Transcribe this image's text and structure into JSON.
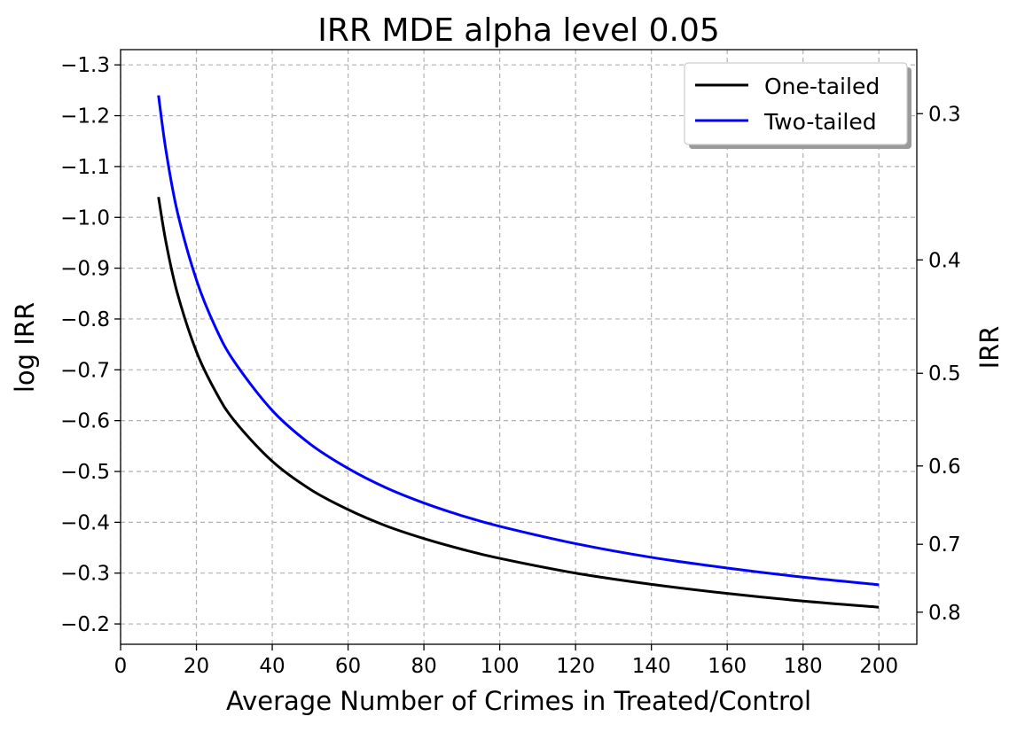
{
  "chart_data": {
    "type": "line",
    "title": "IRR MDE alpha level 0.05",
    "xlabel": "Average Number of Crimes in Treated/Control",
    "ylabel": "log IRR",
    "y2label": "IRR",
    "xlim": [
      0,
      210
    ],
    "ylim": [
      -0.16,
      -1.33
    ],
    "y_inverted": true,
    "x_ticks": [
      0,
      20,
      40,
      60,
      80,
      100,
      120,
      140,
      160,
      180,
      200
    ],
    "y_ticks": [
      -0.2,
      -0.3,
      -0.4,
      -0.5,
      -0.6,
      -0.7,
      -0.8,
      -0.9,
      -1.0,
      -1.1,
      -1.2,
      -1.3
    ],
    "y_tick_labels": [
      "−0.2",
      "−0.3",
      "−0.4",
      "−0.5",
      "−0.6",
      "−0.7",
      "−0.8",
      "−0.9",
      "−1.0",
      "−1.1",
      "−1.2",
      "−1.3"
    ],
    "y2_ticks": [
      0.3,
      0.4,
      0.5,
      0.6,
      0.7,
      0.8
    ],
    "y2_tick_labels": [
      "0.3",
      "0.4",
      "0.5",
      "0.6",
      "0.7",
      "0.8"
    ],
    "grid": true,
    "legend_position": "top-right",
    "series": [
      {
        "name": "One-tailed",
        "color": "#000000",
        "x": [
          10,
          12,
          15,
          20,
          25,
          30,
          40,
          50,
          60,
          70,
          80,
          90,
          100,
          120,
          140,
          160,
          180,
          200
        ],
        "y": [
          -1.04,
          -0.95,
          -0.85,
          -0.736,
          -0.658,
          -0.6,
          -0.52,
          -0.465,
          -0.425,
          -0.393,
          -0.368,
          -0.347,
          -0.329,
          -0.3,
          -0.278,
          -0.26,
          -0.245,
          -0.233
        ]
      },
      {
        "name": "Two-tailed",
        "color": "#0000ff",
        "x": [
          10,
          12,
          15,
          20,
          25,
          30,
          40,
          50,
          60,
          70,
          80,
          90,
          100,
          120,
          140,
          160,
          180,
          200
        ],
        "y": [
          -1.24,
          -1.13,
          -1.01,
          -0.877,
          -0.784,
          -0.716,
          -0.62,
          -0.554,
          -0.506,
          -0.468,
          -0.438,
          -0.413,
          -0.392,
          -0.358,
          -0.331,
          -0.31,
          -0.292,
          -0.277
        ]
      }
    ]
  }
}
